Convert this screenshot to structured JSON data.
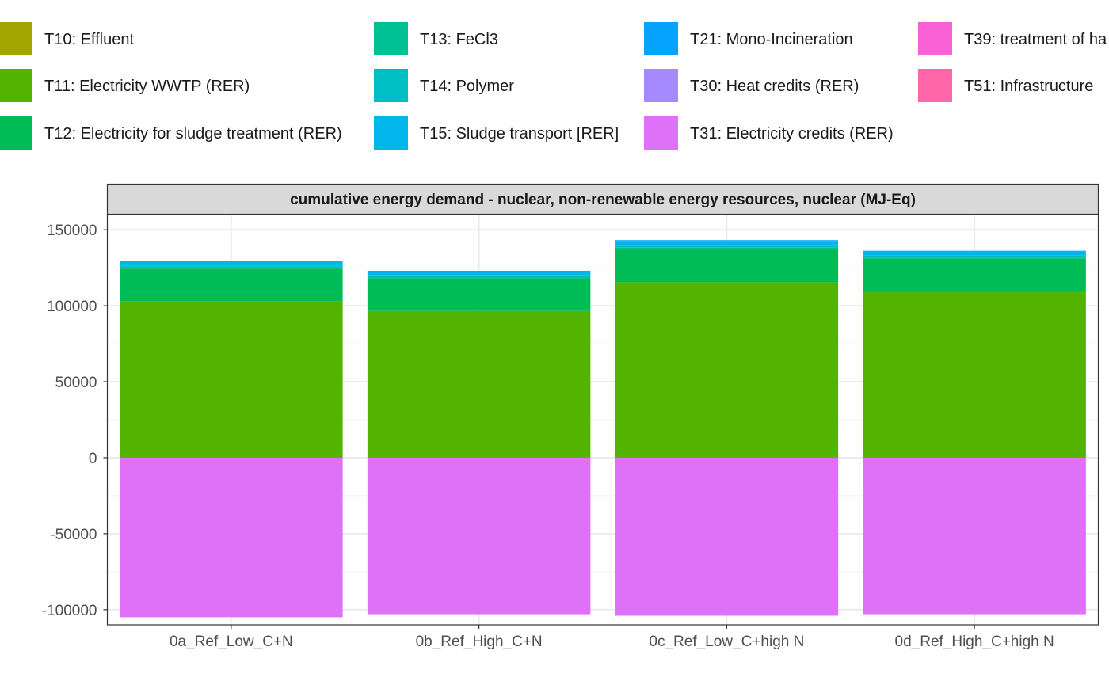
{
  "chart_data": {
    "type": "bar",
    "stacked": true,
    "title": "cumulative energy demand - nuclear, non-renewable energy resources, nuclear (MJ-Eq)",
    "xlabel": "",
    "ylabel": "",
    "categories": [
      "0a_Ref_Low_C+N",
      "0b_Ref_High_C+N",
      "0c_Ref_Low_C+high N",
      "0d_Ref_High_C+high N"
    ],
    "ylim": [
      -110000,
      160000
    ],
    "yticks": [
      -100000,
      -50000,
      0,
      50000,
      100000,
      150000
    ],
    "ytick_labels": [
      "-100000",
      "-50000",
      "0",
      "50000",
      "100000",
      "150000"
    ],
    "grid": true,
    "legend_position": "top",
    "series": [
      {
        "name": "T10: Effluent",
        "color": "#A3A500",
        "values": [
          0,
          0,
          0,
          0
        ]
      },
      {
        "name": "T11: Electricity WWTP (RER)",
        "color": "#53B400",
        "values": [
          103000,
          96500,
          115500,
          109500
        ]
      },
      {
        "name": "T12: Electricity for sludge treatment (RER)",
        "color": "#00BC56",
        "values": [
          21500,
          21500,
          22000,
          21500
        ]
      },
      {
        "name": "T13: FeCl3",
        "color": "#00C094",
        "values": [
          800,
          800,
          800,
          800
        ]
      },
      {
        "name": "T14: Polymer",
        "color": "#00BFC4",
        "values": [
          1200,
          1200,
          1200,
          1200
        ]
      },
      {
        "name": "T15: Sludge transport [RER]",
        "color": "#00B6EB",
        "values": [
          2500,
          2500,
          3200,
          2700
        ]
      },
      {
        "name": "T21: Mono-Incineration",
        "color": "#06A4FF",
        "values": [
          500,
          500,
          500,
          500
        ]
      },
      {
        "name": "T30: Heat credits (RER)",
        "color": "#A58AFF",
        "values": [
          0,
          0,
          0,
          0
        ]
      },
      {
        "name": "T31: Electricity credits (RER)",
        "color": "#DF70F8",
        "values": [
          -105000,
          -103000,
          -104000,
          -103000
        ]
      },
      {
        "name": "T39: treatment of ha",
        "color": "#FB61D7",
        "values": [
          0,
          0,
          0,
          0
        ]
      },
      {
        "name": "T51: Infrastructure",
        "color": "#FF66A8",
        "values": [
          0,
          0,
          0,
          0
        ]
      }
    ]
  }
}
